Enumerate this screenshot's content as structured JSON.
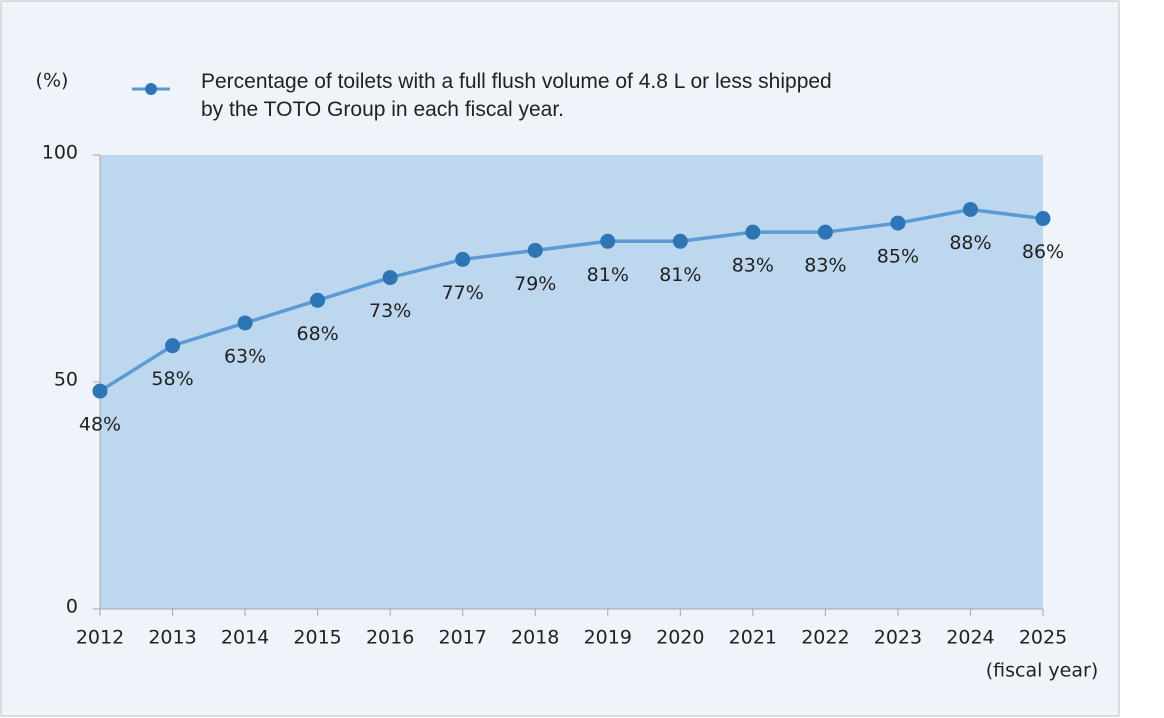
{
  "chart_data": {
    "type": "line",
    "y_label": "(%)",
    "x_label": "(fiscal year)",
    "x": [
      2012,
      2013,
      2014,
      2015,
      2016,
      2017,
      2018,
      2019,
      2020,
      2021,
      2022,
      2023,
      2024,
      2025
    ],
    "xlim": [
      2012,
      2025
    ],
    "xticks": [
      2012,
      2013,
      2014,
      2015,
      2016,
      2017,
      2018,
      2019,
      2020,
      2021,
      2022,
      2023,
      2024,
      2025
    ],
    "ylim": [
      0,
      100
    ],
    "yticks": [
      0,
      50,
      100
    ],
    "series": [
      {
        "name": "Percentage of toilets with a full flush volume of 4.8 L or less shipped by the TOTO Group in each fiscal year.",
        "color": "#5b9bd5",
        "marker_color": "#2e75b6",
        "values": [
          48,
          58,
          63,
          68,
          73,
          77,
          79,
          81,
          81,
          83,
          83,
          85,
          88,
          86
        ],
        "value_labels": [
          "48%",
          "58%",
          "63%",
          "68%",
          "73%",
          "77%",
          "79%",
          "81%",
          "81%",
          "83%",
          "83%",
          "85%",
          "88%",
          "86%"
        ]
      }
    ],
    "plot_background": "#bdd7ee"
  }
}
